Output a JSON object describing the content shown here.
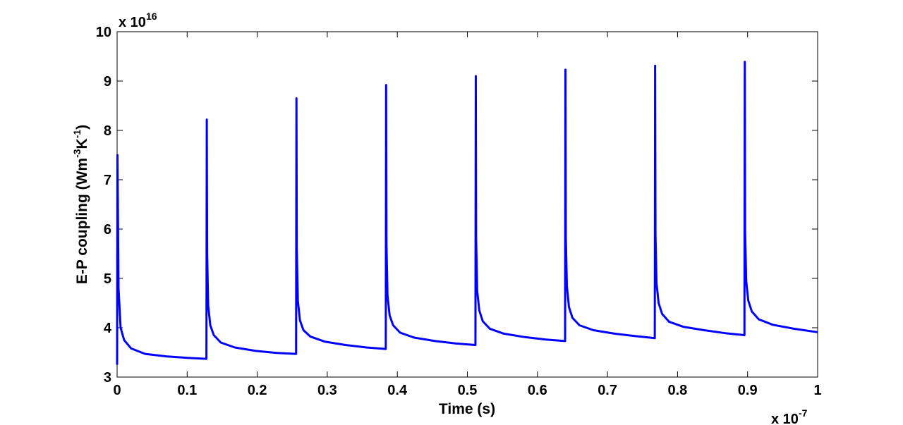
{
  "chart_data": {
    "type": "line",
    "title": "",
    "xlabel": "Time (s)",
    "ylabel_base": "E-P coupling (Wm",
    "ylabel_exp1": "-3",
    "ylabel_mid": "K",
    "ylabel_exp2": "-1",
    "ylabel_end": ")",
    "x_multiplier_base": "x 10",
    "x_multiplier_exp": "-7",
    "y_multiplier_base": "x 10",
    "y_multiplier_exp": "16",
    "xlim": [
      0,
      1
    ],
    "ylim": [
      3,
      10
    ],
    "xticks": [
      "0",
      "0.1",
      "0.2",
      "0.3",
      "0.4",
      "0.5",
      "0.6",
      "0.7",
      "0.8",
      "0.9",
      "1"
    ],
    "yticks": [
      "3",
      "4",
      "5",
      "6",
      "7",
      "8",
      "9",
      "10"
    ],
    "grid": false,
    "line_color": "#0000ff",
    "pulse_period": 0.128,
    "series": [
      {
        "x": [
          0,
          0.0005,
          0.002,
          0.005,
          0.01,
          0.02,
          0.04,
          0.07,
          0.1,
          0.1275,
          0.128,
          0.1285,
          0.13,
          0.133,
          0.138,
          0.148,
          0.168,
          0.198,
          0.228,
          0.2555,
          0.256,
          0.2565,
          0.258,
          0.261,
          0.266,
          0.276,
          0.296,
          0.326,
          0.356,
          0.3835,
          0.384,
          0.3845,
          0.386,
          0.389,
          0.394,
          0.404,
          0.424,
          0.454,
          0.484,
          0.5115,
          0.512,
          0.5125,
          0.514,
          0.517,
          0.522,
          0.532,
          0.552,
          0.582,
          0.612,
          0.6395,
          0.64,
          0.6405,
          0.642,
          0.645,
          0.65,
          0.66,
          0.68,
          0.71,
          0.74,
          0.7675,
          0.768,
          0.7685,
          0.77,
          0.773,
          0.778,
          0.788,
          0.808,
          0.838,
          0.868,
          0.8955,
          0.896,
          0.8965,
          0.898,
          0.901,
          0.906,
          0.916,
          0.936,
          0.966,
          1.0
        ],
        "y": [
          3.25,
          7.5,
          4.8,
          4.0,
          3.75,
          3.58,
          3.47,
          3.42,
          3.39,
          3.37,
          8.22,
          5.5,
          4.45,
          4.05,
          3.85,
          3.7,
          3.6,
          3.53,
          3.49,
          3.47,
          8.65,
          5.6,
          4.55,
          4.15,
          3.95,
          3.82,
          3.72,
          3.65,
          3.6,
          3.57,
          8.92,
          5.7,
          4.65,
          4.25,
          4.05,
          3.9,
          3.8,
          3.73,
          3.68,
          3.65,
          9.1,
          5.8,
          4.75,
          4.35,
          4.13,
          3.98,
          3.88,
          3.81,
          3.76,
          3.73,
          9.23,
          5.85,
          4.85,
          4.42,
          4.2,
          4.05,
          3.95,
          3.88,
          3.83,
          3.79,
          9.31,
          5.9,
          4.9,
          4.5,
          4.28,
          4.12,
          4.02,
          3.95,
          3.89,
          3.85,
          9.39,
          5.95,
          4.95,
          4.55,
          4.33,
          4.17,
          4.06,
          3.98,
          3.91
        ]
      }
    ]
  }
}
